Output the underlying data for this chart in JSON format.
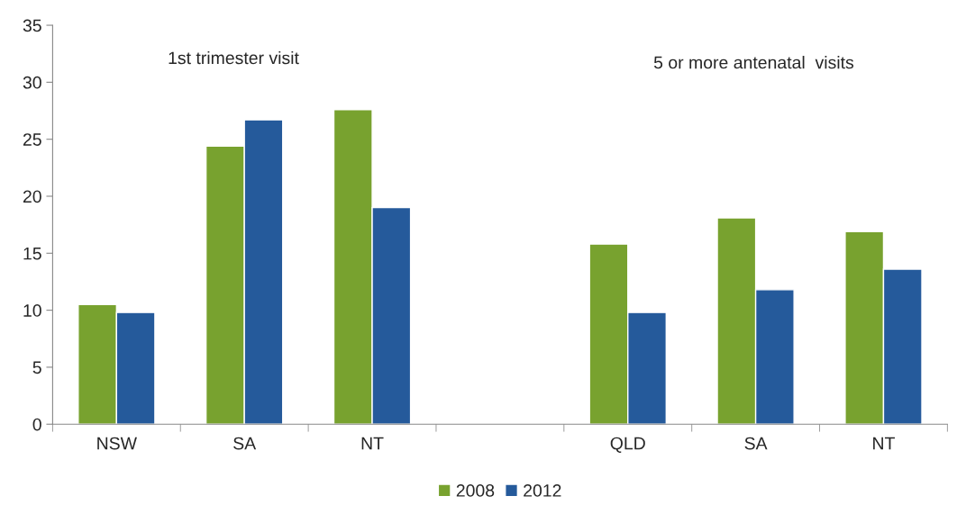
{
  "chart_data": {
    "type": "bar",
    "categories": [
      "NSW",
      "SA",
      "NT",
      null,
      "QLD",
      "SA",
      "NT"
    ],
    "series": [
      {
        "name": "2008",
        "color": "#78a22f",
        "values": [
          10.5,
          24.4,
          27.6,
          null,
          15.8,
          18.1,
          16.9
        ]
      },
      {
        "name": "2012",
        "color": "#255a9b",
        "values": [
          9.8,
          26.7,
          19.0,
          null,
          9.8,
          11.8,
          13.6
        ]
      }
    ],
    "ylim": [
      0,
      35
    ],
    "yticks": [
      0,
      5,
      10,
      15,
      20,
      25,
      30,
      35
    ],
    "annotations": [
      "1st trimester visit",
      "5 or more antenatal  visits"
    ],
    "grid": false,
    "legend": "bottom"
  }
}
